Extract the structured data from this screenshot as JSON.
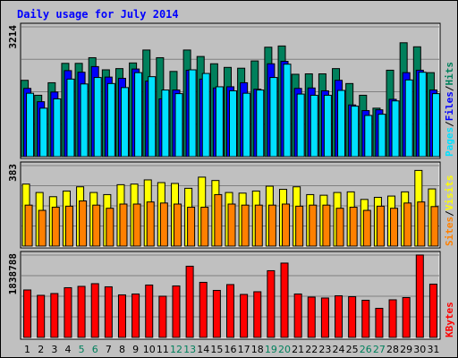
{
  "chart_data": {
    "title": "Daily usage for July 2014",
    "days": [
      "1",
      "2",
      "3",
      "4",
      "5",
      "6",
      "7",
      "8",
      "9",
      "10",
      "11",
      "12",
      "13",
      "14",
      "15",
      "16",
      "17",
      "18",
      "19",
      "20",
      "21",
      "22",
      "23",
      "24",
      "25",
      "26",
      "27",
      "28",
      "29",
      "30",
      "31"
    ],
    "weekend_days": [
      "5",
      "6",
      "12",
      "13",
      "19",
      "20",
      "26",
      "27"
    ],
    "colors": {
      "hits": "#00805c",
      "files": "#0000ff",
      "pages": "#00e0ff",
      "visits": "#ffff00",
      "sites": "#ff8000",
      "kbytes": "#ff0000",
      "title": "#0000ff",
      "weekday_label": "#000000",
      "weekend_label": "#00805c",
      "panel_bg": "#c0c0c0",
      "gridline": "#808080"
    },
    "panels": [
      {
        "type": "bar",
        "max_label": "3214",
        "ylim": [
          0,
          3214
        ],
        "legend": [
          {
            "key": "pages",
            "label": "Pages"
          },
          {
            "key": "sep1",
            "label": "/"
          },
          {
            "key": "files",
            "label": "Files"
          },
          {
            "key": "sep2",
            "label": "/"
          },
          {
            "key": "hits",
            "label": "Hits"
          }
        ],
        "series": [
          {
            "key": "hits",
            "values": [
              1890,
              1520,
              1830,
              2310,
              2310,
              2450,
              2150,
              2180,
              2320,
              2640,
              2450,
              2110,
              2640,
              2480,
              2300,
              2210,
              2190,
              2370,
              2710,
              2740,
              2040,
              2050,
              2050,
              2180,
              1810,
              1520,
              1200,
              2140,
              2820,
              2720,
              2080
            ]
          },
          {
            "key": "files",
            "values": [
              1690,
              1360,
              1600,
              2130,
              2090,
              2230,
              1970,
              1940,
              2170,
              1870,
              1430,
              1650,
              2140,
              1920,
              1700,
              1730,
              1830,
              1670,
              2300,
              2360,
              1690,
              1700,
              1630,
              1890,
              1280,
              1140,
              1160,
              1420,
              2080,
              2140,
              1650
            ]
          },
          {
            "key": "pages",
            "values": [
              1570,
              1200,
              1430,
              1920,
              1800,
              1960,
              1810,
              1710,
              2080,
              1980,
              1650,
              1560,
              2150,
              2060,
              1730,
              1630,
              1570,
              1650,
              1960,
              2290,
              1550,
              1520,
              1520,
              1640,
              1250,
              1020,
              1050,
              1380,
              1900,
              2090,
              1560
            ]
          }
        ]
      },
      {
        "type": "bar",
        "max_label": "383",
        "ylim": [
          0,
          383
        ],
        "legend": [
          {
            "key": "sites",
            "label": "Sites"
          },
          {
            "key": "sep1",
            "label": "/"
          },
          {
            "key": "visits",
            "label": "Visits"
          }
        ],
        "series": [
          {
            "key": "visits",
            "values": [
              295,
              255,
              235,
              262,
              282,
              255,
              245,
              292,
              295,
              315,
              302,
              298,
              275,
              328,
              312,
              255,
              252,
              262,
              285,
              270,
              282,
              245,
              242,
              255,
              258,
              222,
              232,
              238,
              258,
              360,
              272
            ]
          },
          {
            "key": "sites",
            "values": [
              195,
              170,
              185,
              190,
              215,
              195,
              180,
              200,
              200,
              210,
              205,
              200,
              185,
              185,
              245,
              200,
              195,
              195,
              195,
              200,
              190,
              195,
              195,
              180,
              185,
              170,
              190,
              180,
              205,
              210,
              188
            ]
          }
        ]
      },
      {
        "type": "bar",
        "max_label": "1838788",
        "ylim": [
          0,
          1838788
        ],
        "legend": [
          {
            "key": "kbytes",
            "label": "KBytes"
          }
        ],
        "series": [
          {
            "key": "kbytes",
            "values": [
              1060000,
              940000,
              980000,
              1110000,
              1140000,
              1200000,
              1130000,
              950000,
              970000,
              1170000,
              920000,
              1150000,
              1590000,
              1230000,
              1050000,
              1180000,
              960000,
              1020000,
              1490000,
              1660000,
              970000,
              900000,
              880000,
              930000,
              910000,
              830000,
              650000,
              840000,
              890000,
              1840000,
              1190000
            ]
          }
        ]
      }
    ]
  }
}
